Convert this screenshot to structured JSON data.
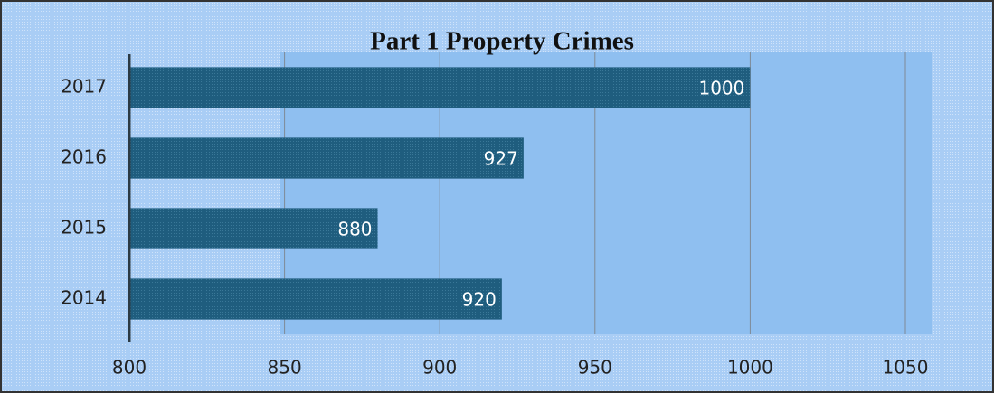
{
  "chart_data": {
    "type": "bar",
    "orientation": "horizontal",
    "title": "Part 1 Property Crimes",
    "categories": [
      "2017",
      "2016",
      "2015",
      "2014"
    ],
    "values": [
      1000,
      927,
      880,
      920
    ],
    "color": "#1f5d7e",
    "xlim": [
      800,
      1050
    ],
    "xticks": [
      800,
      850,
      900,
      950,
      1000,
      1050
    ],
    "grid": true
  }
}
